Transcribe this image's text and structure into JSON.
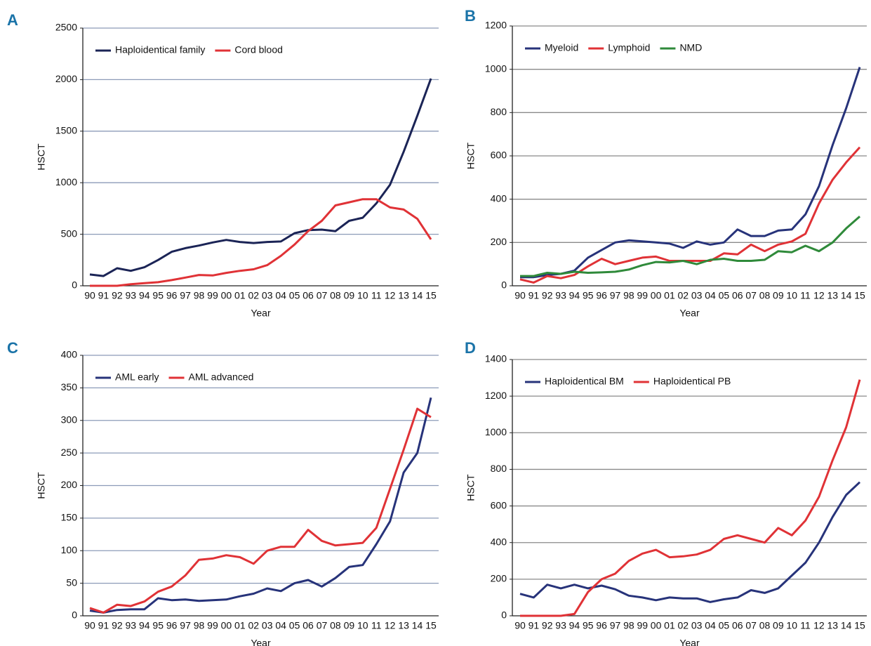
{
  "chart_data": [
    {
      "type": "line",
      "panel": "A",
      "ylabel": "HSCT",
      "xlabel": "Year",
      "categories": [
        "90",
        "91",
        "92",
        "93",
        "94",
        "95",
        "96",
        "97",
        "98",
        "99",
        "00",
        "01",
        "02",
        "03",
        "04",
        "05",
        "06",
        "07",
        "08",
        "09",
        "10",
        "11",
        "12",
        "13",
        "14",
        "15"
      ],
      "series": [
        {
          "name": "Haploidentical family",
          "color": "#1b2456",
          "values": [
            110,
            95,
            170,
            145,
            180,
            250,
            330,
            365,
            390,
            420,
            445,
            425,
            415,
            425,
            430,
            510,
            540,
            545,
            530,
            630,
            660,
            800,
            980,
            1300,
            1650,
            2010
          ]
        },
        {
          "name": "Cord blood",
          "color": "#e03236",
          "values": [
            0,
            0,
            0,
            15,
            25,
            35,
            55,
            80,
            105,
            100,
            125,
            145,
            160,
            200,
            290,
            400,
            530,
            630,
            780,
            810,
            840,
            840,
            760,
            740,
            650,
            450
          ]
        }
      ],
      "ylim": [
        0,
        2500
      ],
      "yticks": [
        0,
        500,
        1000,
        1500,
        2000,
        2500
      ],
      "grid": true,
      "grid_color": "#8c9bb8"
    },
    {
      "type": "line",
      "panel": "B",
      "ylabel": "HSCT",
      "xlabel": "Year",
      "categories": [
        "90",
        "91",
        "92",
        "93",
        "94",
        "95",
        "96",
        "97",
        "98",
        "99",
        "00",
        "01",
        "02",
        "03",
        "04",
        "05",
        "06",
        "07",
        "08",
        "09",
        "10",
        "11",
        "12",
        "13",
        "14",
        "15"
      ],
      "series": [
        {
          "name": "Myeloid",
          "color": "#27337a",
          "values": [
            40,
            40,
            50,
            55,
            70,
            130,
            165,
            200,
            210,
            205,
            200,
            195,
            175,
            205,
            190,
            200,
            260,
            230,
            230,
            255,
            260,
            330,
            460,
            650,
            820,
            1010
          ]
        },
        {
          "name": "Lymphoid",
          "color": "#e03236",
          "values": [
            30,
            15,
            45,
            35,
            50,
            90,
            125,
            100,
            115,
            130,
            135,
            115,
            115,
            115,
            115,
            150,
            145,
            190,
            160,
            190,
            205,
            240,
            380,
            490,
            570,
            640
          ]
        },
        {
          "name": "NMD",
          "color": "#2f8a3a",
          "values": [
            45,
            45,
            60,
            55,
            65,
            60,
            62,
            65,
            75,
            95,
            110,
            108,
            115,
            100,
            120,
            125,
            115,
            115,
            120,
            160,
            155,
            185,
            160,
            200,
            265,
            320
          ]
        }
      ],
      "ylim": [
        0,
        1200
      ],
      "yticks": [
        0,
        200,
        400,
        600,
        800,
        1000,
        1200
      ],
      "grid": true,
      "grid_color": "#8a8a8a"
    },
    {
      "type": "line",
      "panel": "C",
      "ylabel": "HSCT",
      "xlabel": "Year",
      "categories": [
        "90",
        "91",
        "92",
        "93",
        "94",
        "95",
        "96",
        "97",
        "98",
        "99",
        "00",
        "01",
        "02",
        "03",
        "04",
        "05",
        "06",
        "07",
        "08",
        "09",
        "10",
        "11",
        "12",
        "13",
        "14",
        "15"
      ],
      "series": [
        {
          "name": "AML early",
          "color": "#27337a",
          "values": [
            8,
            5,
            9,
            10,
            10,
            27,
            24,
            25,
            23,
            24,
            25,
            30,
            34,
            42,
            38,
            50,
            55,
            45,
            58,
            75,
            78,
            110,
            145,
            220,
            250,
            335
          ]
        },
        {
          "name": "AML advanced",
          "color": "#e03236",
          "values": [
            12,
            5,
            17,
            15,
            22,
            37,
            45,
            62,
            86,
            88,
            93,
            90,
            80,
            100,
            106,
            106,
            132,
            115,
            108,
            110,
            112,
            135,
            195,
            255,
            318,
            305
          ]
        }
      ],
      "ylim": [
        0,
        400
      ],
      "yticks": [
        0,
        50,
        100,
        150,
        200,
        250,
        300,
        350,
        400
      ],
      "grid": true,
      "grid_color": "#8c9bb8"
    },
    {
      "type": "line",
      "panel": "D",
      "ylabel": "HSCT",
      "xlabel": "Year",
      "categories": [
        "90",
        "91",
        "92",
        "93",
        "94",
        "95",
        "96",
        "97",
        "98",
        "99",
        "00",
        "01",
        "02",
        "03",
        "04",
        "05",
        "06",
        "07",
        "08",
        "09",
        "10",
        "11",
        "12",
        "13",
        "14",
        "15"
      ],
      "series": [
        {
          "name": "Haploidentical BM",
          "color": "#27337a",
          "values": [
            120,
            100,
            170,
            150,
            170,
            150,
            165,
            145,
            110,
            100,
            85,
            100,
            95,
            95,
            75,
            90,
            100,
            140,
            125,
            150,
            220,
            290,
            400,
            540,
            660,
            730
          ]
        },
        {
          "name": "Haploidentical PB",
          "color": "#e03236",
          "values": [
            0,
            0,
            0,
            0,
            10,
            130,
            200,
            230,
            300,
            340,
            360,
            320,
            325,
            335,
            360,
            420,
            440,
            420,
            400,
            480,
            440,
            520,
            650,
            850,
            1030,
            1290
          ]
        }
      ],
      "ylim": [
        0,
        1400
      ],
      "yticks": [
        0,
        200,
        400,
        600,
        800,
        1000,
        1200,
        1400
      ],
      "grid": true,
      "grid_color": "#8a8a8a"
    }
  ]
}
